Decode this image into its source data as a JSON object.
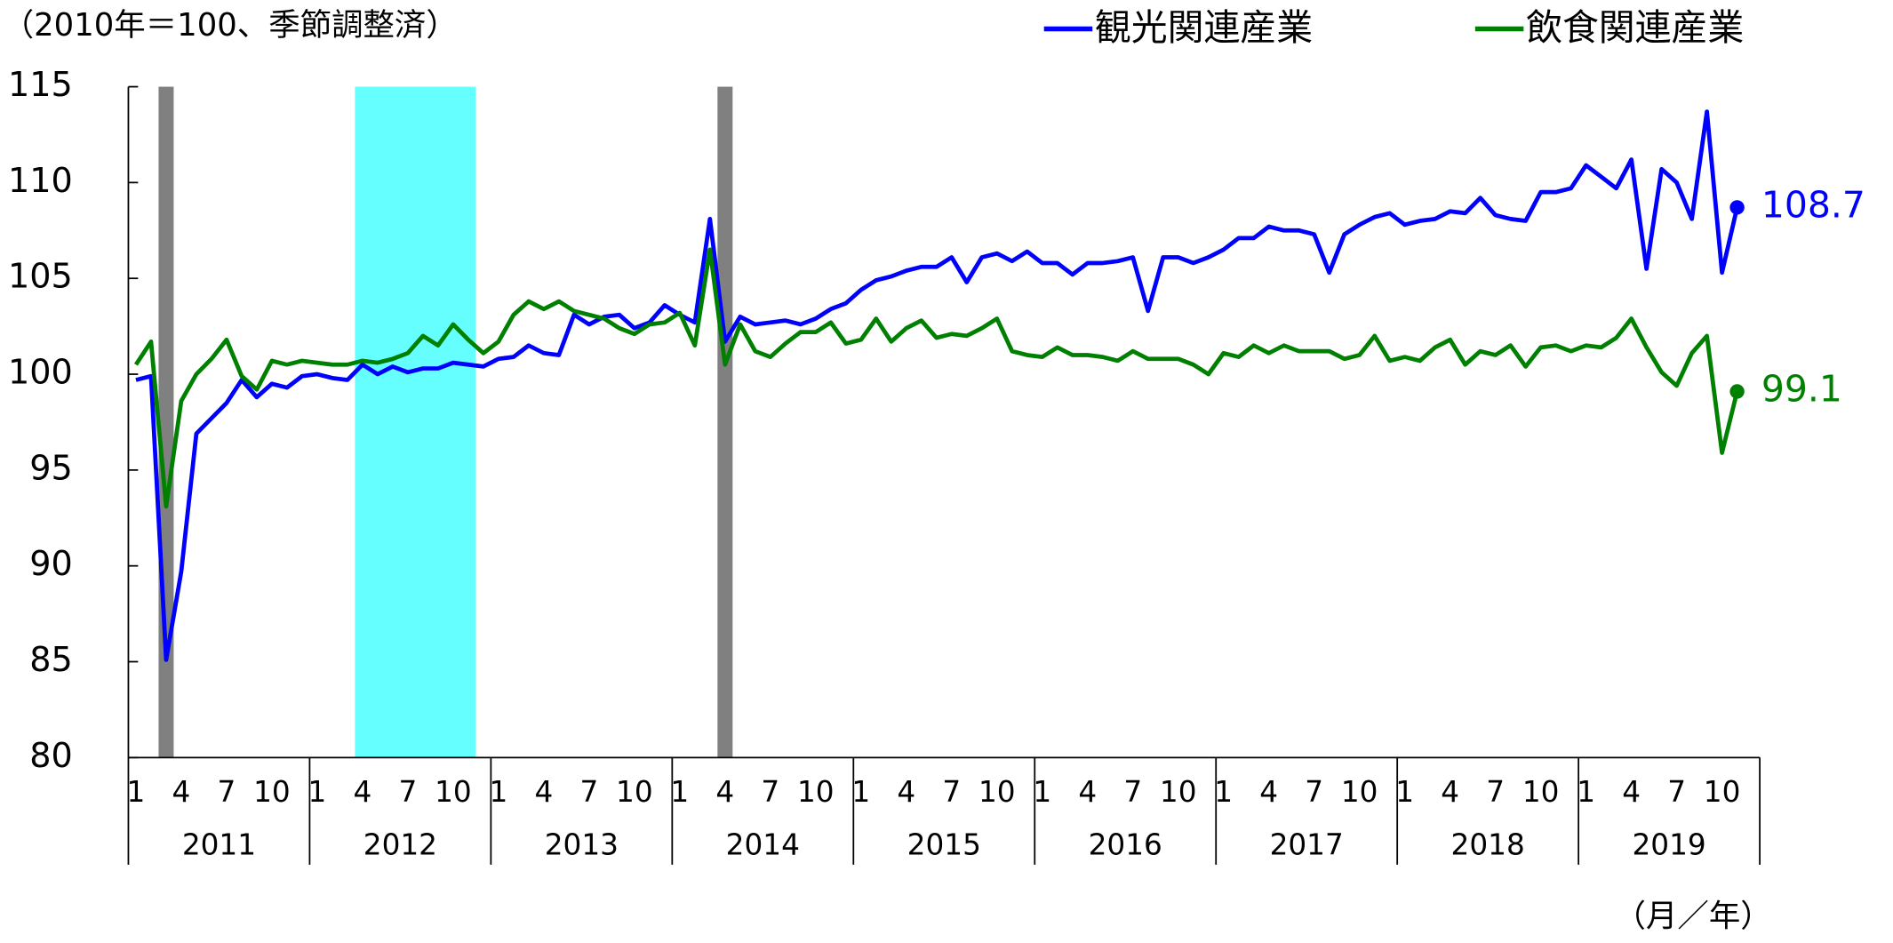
{
  "chart_data": {
    "type": "line",
    "note": "（2010年＝100、季節調整済）",
    "x_label": "（月／年）",
    "years": [
      2011,
      2012,
      2013,
      2014,
      2015,
      2016,
      2017,
      2018,
      2019
    ],
    "month_ticks": [
      1,
      4,
      7,
      10
    ],
    "ylim": [
      80,
      115
    ],
    "yticks": [
      80,
      85,
      90,
      95,
      100,
      105,
      110,
      115
    ],
    "shaded": [
      {
        "year": 2011,
        "month_start": 3,
        "month_end": 3,
        "color": "#808080"
      },
      {
        "year": 2012,
        "month_start": 4,
        "month_end": 11,
        "color": "#66ffff"
      },
      {
        "year": 2014,
        "month_start": 4,
        "month_end": 4,
        "color": "#808080"
      }
    ],
    "series": [
      {
        "name": "観光関連産業",
        "color": "#0000ff",
        "end_label": "108.7",
        "values": [
          99.7,
          99.9,
          85.1,
          89.7,
          96.9,
          97.7,
          98.5,
          99.7,
          98.8,
          99.5,
          99.3,
          99.9,
          100.0,
          99.8,
          99.7,
          100.5,
          100.0,
          100.4,
          100.1,
          100.3,
          100.3,
          100.6,
          100.5,
          100.4,
          100.8,
          100.9,
          101.5,
          101.1,
          101.0,
          103.1,
          102.6,
          103.0,
          103.1,
          102.4,
          102.7,
          103.6,
          103.1,
          102.7,
          108.1,
          101.7,
          103.0,
          102.6,
          102.7,
          102.8,
          102.6,
          102.9,
          103.4,
          103.7,
          104.4,
          104.9,
          105.1,
          105.4,
          105.6,
          105.6,
          106.1,
          104.8,
          106.1,
          106.3,
          105.9,
          106.4,
          105.8,
          105.8,
          105.2,
          105.8,
          105.8,
          105.9,
          106.1,
          103.3,
          106.1,
          106.1,
          105.8,
          106.1,
          106.5,
          107.1,
          107.1,
          107.7,
          107.5,
          107.5,
          107.3,
          105.3,
          107.3,
          107.8,
          108.2,
          108.4,
          107.8,
          108.0,
          108.1,
          108.5,
          108.4,
          109.2,
          108.3,
          108.1,
          108.0,
          109.5,
          109.5,
          109.7,
          110.9,
          110.3,
          109.7,
          111.2,
          105.5,
          110.7,
          110.0,
          108.1,
          113.7,
          105.3,
          108.7
        ]
      },
      {
        "name": "飲食関連産業",
        "color": "#008000",
        "end_label": "99.1",
        "values": [
          100.5,
          101.7,
          93.1,
          98.6,
          100.0,
          100.8,
          101.8,
          99.9,
          99.2,
          100.7,
          100.5,
          100.7,
          100.6,
          100.5,
          100.5,
          100.7,
          100.6,
          100.8,
          101.1,
          102.0,
          101.5,
          102.6,
          101.8,
          101.1,
          101.7,
          103.1,
          103.8,
          103.4,
          103.8,
          103.3,
          103.1,
          102.9,
          102.4,
          102.1,
          102.6,
          102.7,
          103.2,
          101.5,
          106.5,
          100.5,
          102.6,
          101.2,
          100.9,
          101.6,
          102.2,
          102.2,
          102.7,
          101.6,
          101.8,
          102.9,
          101.7,
          102.4,
          102.8,
          101.9,
          102.1,
          102.0,
          102.4,
          102.9,
          101.2,
          101.0,
          100.9,
          101.4,
          101.0,
          101.0,
          100.9,
          100.7,
          101.2,
          100.8,
          100.8,
          100.8,
          100.5,
          100.0,
          101.1,
          100.9,
          101.5,
          101.1,
          101.5,
          101.2,
          101.2,
          101.2,
          100.8,
          101.0,
          102.0,
          100.7,
          100.9,
          100.7,
          101.4,
          101.8,
          100.5,
          101.2,
          101.0,
          101.5,
          100.4,
          101.4,
          101.5,
          101.2,
          101.5,
          101.4,
          101.9,
          102.9,
          101.4,
          100.1,
          99.4,
          101.1,
          102.0,
          95.9,
          99.1
        ]
      }
    ]
  }
}
